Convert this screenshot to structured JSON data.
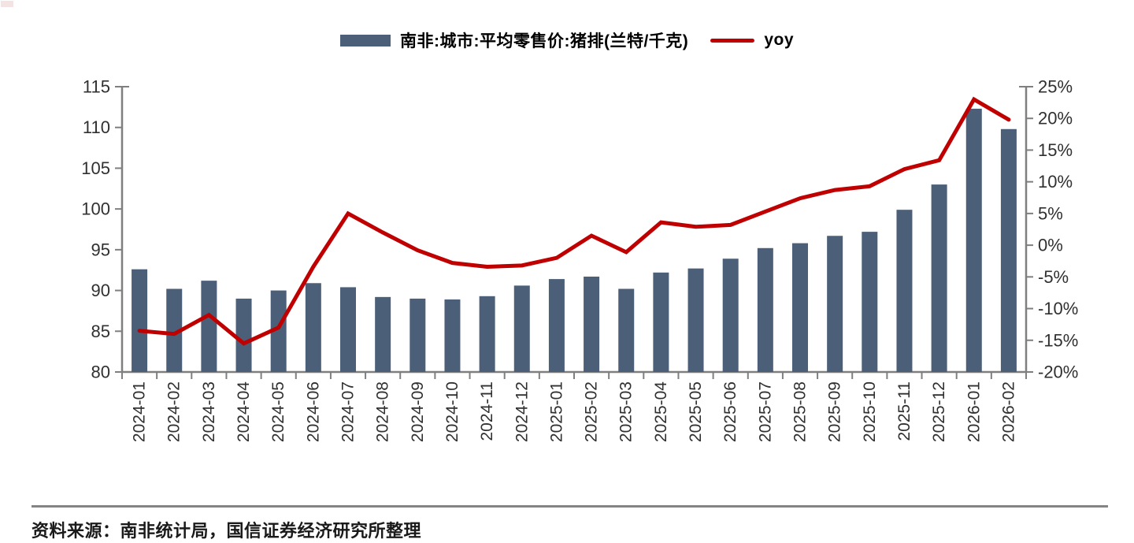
{
  "chart_data": {
    "type": "bar",
    "combo": "bar+line",
    "categories": [
      "2024-01",
      "2024-02",
      "2024-03",
      "2024-04",
      "2024-05",
      "2024-06",
      "2024-07",
      "2024-08",
      "2024-09",
      "2024-10",
      "2024-11",
      "2024-12",
      "2025-01",
      "2025-02",
      "2025-03",
      "2025-04",
      "2025-05",
      "2025-06",
      "2025-07",
      "2025-08",
      "2025-09",
      "2025-10",
      "2025-11",
      "2025-12",
      "2026-01",
      "2026-02"
    ],
    "series": [
      {
        "name": "南非:城市:平均零售价:猪排(兰特/千克)",
        "type": "bar",
        "y_axis": "left",
        "color": "#4c5f78",
        "values": [
          92.6,
          90.2,
          91.2,
          89.0,
          90.0,
          90.9,
          90.4,
          89.2,
          89.0,
          88.9,
          89.3,
          90.6,
          91.4,
          91.7,
          90.2,
          92.2,
          92.7,
          93.9,
          95.2,
          95.8,
          96.7,
          97.2,
          99.9,
          103.0,
          112.3,
          109.8
        ]
      },
      {
        "name": "yoy",
        "type": "line",
        "y_axis": "right",
        "unit": "%",
        "color": "#c00000",
        "values": [
          -13.5,
          -14.0,
          -11.0,
          -15.5,
          -13.0,
          -3.4,
          5.0,
          2.0,
          -0.8,
          -2.8,
          -3.4,
          -3.2,
          -2.0,
          1.5,
          -1.1,
          3.6,
          2.9,
          3.2,
          5.3,
          7.4,
          8.7,
          9.3,
          12.0,
          13.4,
          23.0,
          19.8
        ]
      }
    ],
    "left_axis": {
      "min": 80,
      "max": 115,
      "tick_step": 5,
      "tick_labels": [
        "115",
        "110",
        "105",
        "100",
        "95",
        "90",
        "85",
        "80"
      ]
    },
    "right_axis": {
      "min": -20,
      "max": 25,
      "tick_step": 5,
      "tick_labels": [
        "25%",
        "20%",
        "15%",
        "10%",
        "5%",
        "0%",
        "-5%",
        "-10%",
        "-15%",
        "-20%"
      ]
    },
    "grid": "off",
    "legend_position": "top-center",
    "axis_color": "#7f7f7f",
    "text_color": "#303030"
  },
  "source": {
    "text": "资料来源：南非统计局，国信证券经济研究所整理"
  }
}
